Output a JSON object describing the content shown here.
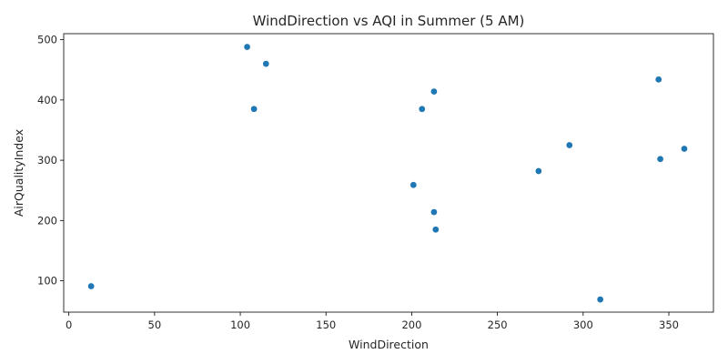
{
  "chart_data": {
    "type": "scatter",
    "title": "WindDirection vs AQI in Summer (5 AM)",
    "xlabel": "WindDirection",
    "ylabel": "AirQualityIndex",
    "xlim": [
      -3,
      376
    ],
    "ylim": [
      48,
      510
    ],
    "xticks": [
      0,
      50,
      100,
      150,
      200,
      250,
      300,
      350
    ],
    "yticks": [
      100,
      200,
      300,
      400,
      500
    ],
    "grid": false,
    "point_color": "#1f77b4",
    "points": [
      {
        "x": 13,
        "y": 91
      },
      {
        "x": 104,
        "y": 488
      },
      {
        "x": 108,
        "y": 385
      },
      {
        "x": 115,
        "y": 460
      },
      {
        "x": 201,
        "y": 259
      },
      {
        "x": 206,
        "y": 385
      },
      {
        "x": 213,
        "y": 414
      },
      {
        "x": 213,
        "y": 214
      },
      {
        "x": 214,
        "y": 185
      },
      {
        "x": 274,
        "y": 282
      },
      {
        "x": 292,
        "y": 325
      },
      {
        "x": 310,
        "y": 69
      },
      {
        "x": 344,
        "y": 434
      },
      {
        "x": 345,
        "y": 302
      },
      {
        "x": 359,
        "y": 319
      }
    ]
  }
}
